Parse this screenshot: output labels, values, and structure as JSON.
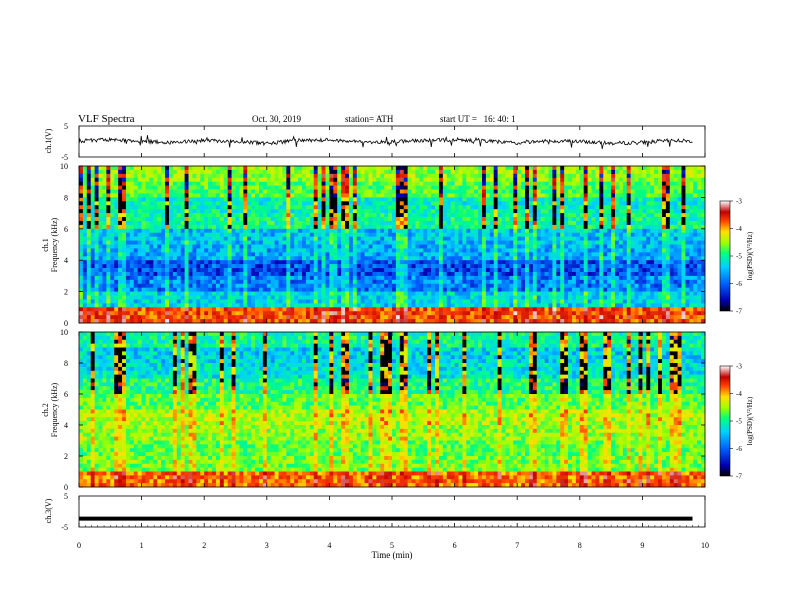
{
  "header": {
    "title": "VLF Spectra",
    "date": "Oct. 30, 2019",
    "station": "station= ATH",
    "start_label": "start UT =",
    "start_time": "16: 40: 1"
  },
  "chart_data": [
    {
      "type": "line",
      "panel": "waveform-ch1",
      "ylabel": "ch.1(V)",
      "ylim": [
        -5,
        5
      ],
      "yticks": [
        "5",
        "-5"
      ],
      "xlim": [
        0,
        10
      ],
      "x": [
        0,
        0.5,
        1,
        1.5,
        2,
        2.5,
        3,
        3.5,
        4,
        4.5,
        5,
        5.5,
        6,
        6.5,
        7,
        7.5,
        8,
        8.5,
        9,
        9.5,
        9.8
      ],
      "values": [
        0.2,
        0.6,
        0.1,
        -0.3,
        0.4,
        0.0,
        -0.6,
        0.3,
        0.5,
        -0.2,
        -0.1,
        0.3,
        0.6,
        0.1,
        -0.4,
        0.2,
        0.0,
        -0.6,
        -0.3,
        0.4,
        0.1
      ],
      "color": "#000000"
    },
    {
      "type": "heatmap",
      "panel": "spectrogram-ch1",
      "ylabel_top": "ch.1",
      "ylabel": "Frequency (kHz)",
      "ylim": [
        0,
        10
      ],
      "yticks": [
        "0",
        "2",
        "4",
        "6",
        "8",
        "10"
      ],
      "xlim": [
        0,
        10
      ],
      "z_label": "log(PSD)(V²/Hz)",
      "zlim": [
        -7,
        -3
      ],
      "zticks": [
        "-3",
        "-4",
        "-5",
        "-6",
        "-7"
      ],
      "colormap": [
        "#000000",
        "#0000b0",
        "#0060ff",
        "#00d0ff",
        "#00ff80",
        "#a0ff00",
        "#ffe000",
        "#ff4000",
        "#c00000",
        "#ffffff"
      ],
      "bands_khz": [
        0,
        1,
        2,
        3,
        4,
        5,
        6,
        7,
        8,
        9,
        10
      ],
      "band_level": [
        -3.9,
        -5.6,
        -6.0,
        -6.2,
        -5.8,
        -5.7,
        -5.3,
        -5.4,
        -5.0,
        -4.8
      ]
    },
    {
      "type": "heatmap",
      "panel": "spectrogram-ch2",
      "ylabel_top": "ch.2",
      "ylabel": "Frequency (kHz)",
      "ylim": [
        0,
        10
      ],
      "yticks": [
        "0",
        "2",
        "4",
        "6",
        "8",
        "10"
      ],
      "xlim": [
        0,
        10
      ],
      "z_label": "log(PSD)(V²/Hz)",
      "zlim": [
        -7,
        -3
      ],
      "zticks": [
        "-3",
        "-4",
        "-5",
        "-6",
        "-7"
      ],
      "band_level": [
        -4.0,
        -4.9,
        -5.0,
        -4.8,
        -4.7,
        -5.0,
        -5.2,
        -5.5,
        -5.6,
        -5.3
      ]
    },
    {
      "type": "line",
      "panel": "waveform-ch3",
      "ylabel": "ch.3(V)",
      "ylim": [
        -5,
        5
      ],
      "yticks": [
        "5",
        "-5"
      ],
      "xlim": [
        0,
        10
      ],
      "x": [
        0,
        9.8
      ],
      "values": [
        -2.3,
        -2.3
      ],
      "color": "#000000"
    }
  ],
  "x_axis": {
    "label": "Time (min)",
    "ticks": [
      "0",
      "1",
      "2",
      "3",
      "4",
      "5",
      "6",
      "7",
      "8",
      "9",
      "10"
    ]
  }
}
